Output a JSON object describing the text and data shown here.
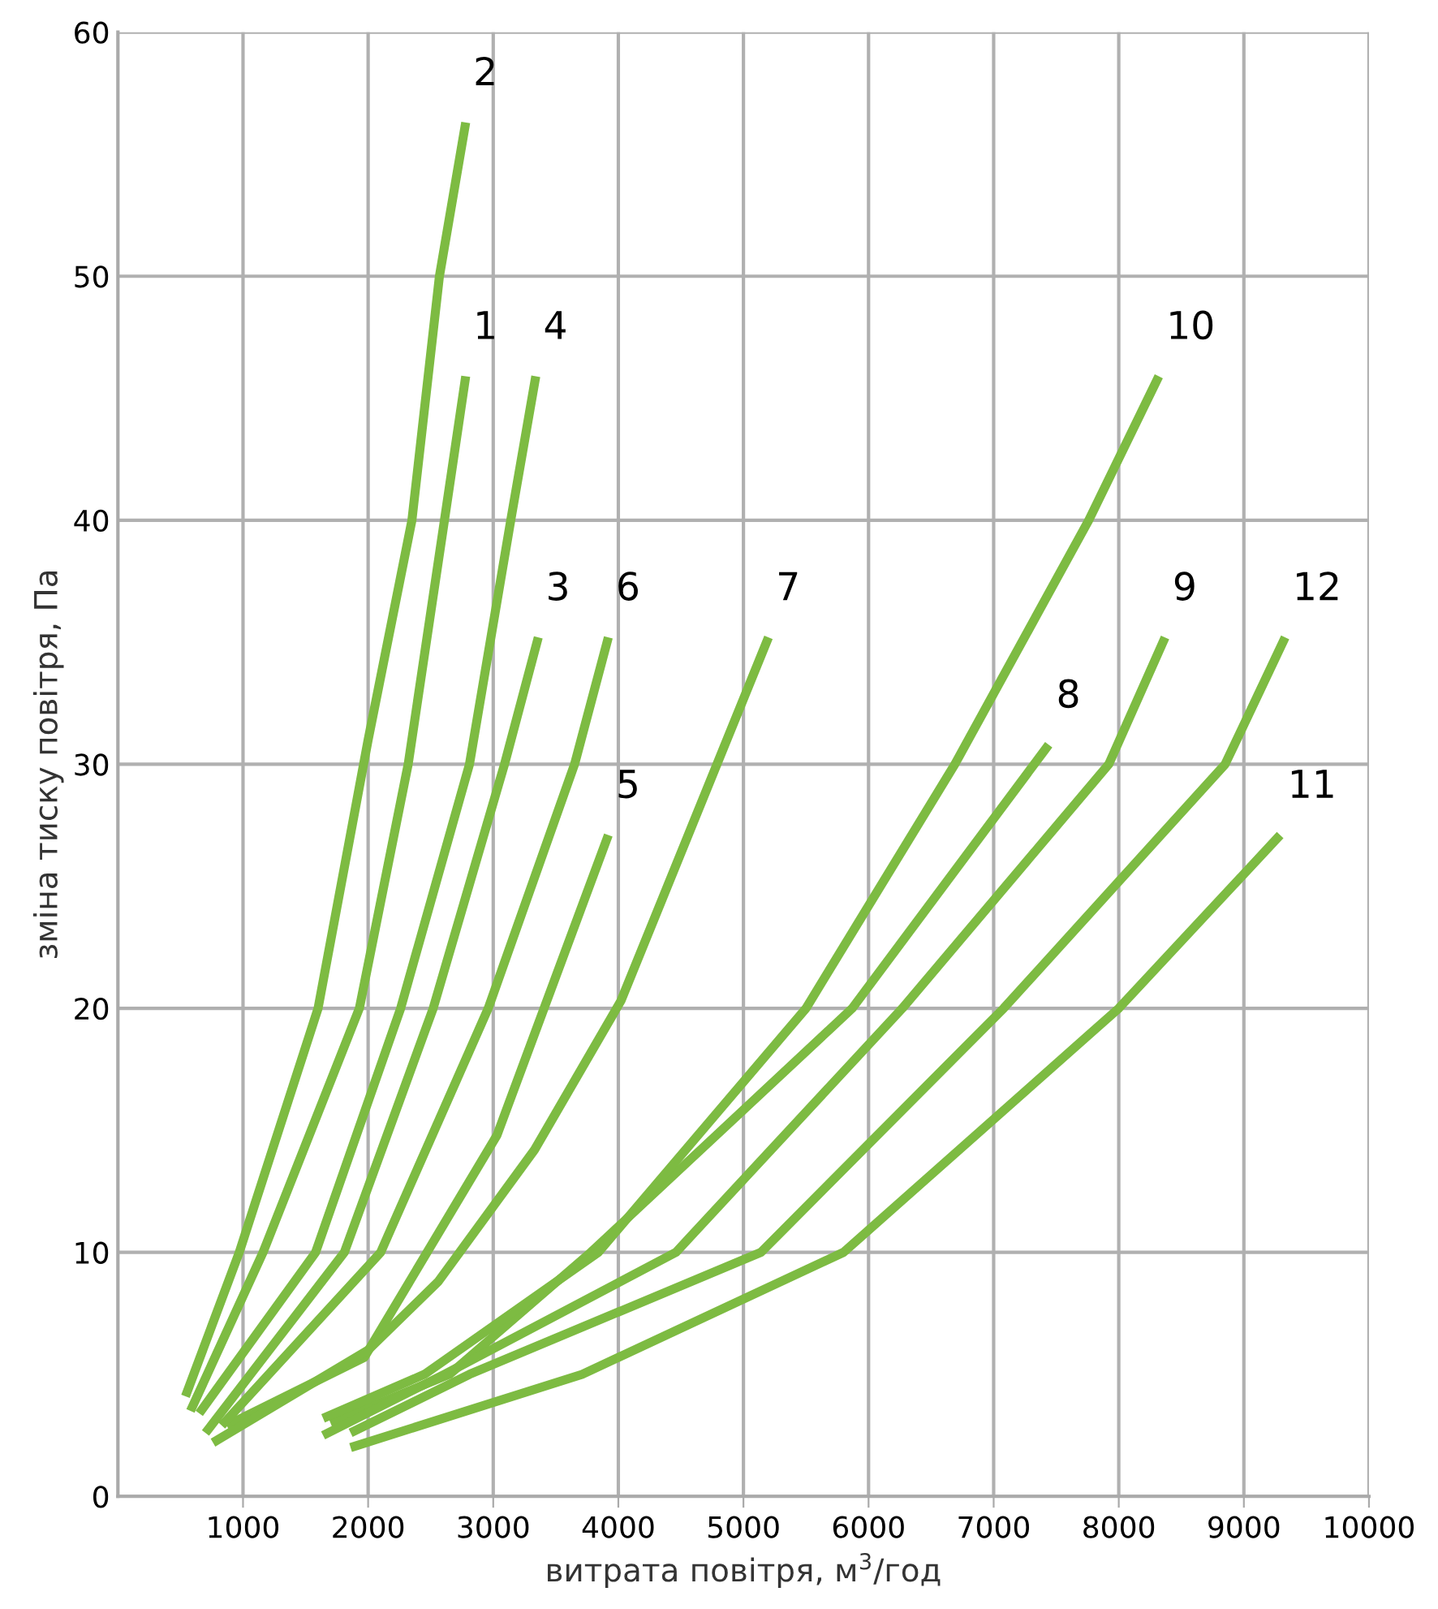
{
  "chart_data": {
    "type": "line",
    "xlabel": "витрата повітря, м$^{3}$/год",
    "ylabel": "зміна тиску повітря, Па",
    "xlim": [
      0,
      10000
    ],
    "ylim": [
      0,
      60
    ],
    "xticks": [
      1000,
      2000,
      3000,
      4000,
      5000,
      6000,
      7000,
      8000,
      9000,
      10000
    ],
    "yticks": [
      0,
      10,
      20,
      30,
      40,
      50,
      60
    ],
    "grid": true,
    "legend": false,
    "marker": "none",
    "line_style": "solid",
    "series": [
      {
        "name": "1",
        "color": "#7dbb42",
        "x": [
          580,
          1160,
          1930,
          2320,
          2610,
          2780
        ],
        "values": [
          3.5,
          10,
          20,
          30,
          40,
          45.9
        ]
      },
      {
        "name": "2",
        "color": "#7dbb42",
        "x": [
          540,
          970,
          1600,
          2000,
          2350,
          2570,
          2780
        ],
        "values": [
          4.1,
          10,
          20,
          31,
          40,
          50,
          56.3
        ]
      },
      {
        "name": "3",
        "color": "#7dbb42",
        "x": [
          700,
          1810,
          2520,
          3090,
          3360
        ],
        "values": [
          2.6,
          10,
          20,
          30,
          35.2
        ]
      },
      {
        "name": "4",
        "color": "#7dbb42",
        "x": [
          650,
          1580,
          2260,
          2810,
          3140,
          3340
        ],
        "values": [
          3.4,
          10,
          20,
          30,
          40,
          45.9
        ]
      },
      {
        "name": "5",
        "color": "#7dbb42",
        "x": [
          870,
          1970,
          3030,
          3920
        ],
        "values": [
          2.9,
          5.7,
          14.8,
          27.1
        ]
      },
      {
        "name": "6",
        "color": "#7dbb42",
        "x": [
          830,
          2100,
          2960,
          3650,
          3920
        ],
        "values": [
          2.9,
          10,
          20,
          30,
          35.2
        ]
      },
      {
        "name": "7",
        "color": "#7dbb42",
        "x": [
          760,
          2000,
          2560,
          3330,
          4020,
          5200
        ],
        "values": [
          2.2,
          6.0,
          8.8,
          14.2,
          20.3,
          35.2
        ]
      },
      {
        "name": "8",
        "color": "#7dbb42",
        "x": [
          1700,
          2650,
          3780,
          5870,
          7440
        ],
        "values": [
          3.0,
          5,
          10,
          20,
          30.8
        ]
      },
      {
        "name": "9",
        "color": "#7dbb42",
        "x": [
          1640,
          2610,
          4460,
          6270,
          7920,
          8370
        ],
        "values": [
          2.5,
          5,
          10,
          20,
          30,
          35.2
        ]
      },
      {
        "name": "10",
        "color": "#7dbb42",
        "x": [
          1640,
          2450,
          3840,
          5500,
          6690,
          7760,
          8320
        ],
        "values": [
          3.2,
          5,
          10,
          20,
          30,
          40,
          45.9
        ]
      },
      {
        "name": "11",
        "color": "#7dbb42",
        "x": [
          1860,
          3710,
          5800,
          8000,
          9290
        ],
        "values": [
          2.0,
          5,
          10,
          20,
          27.1
        ]
      },
      {
        "name": "12",
        "color": "#7dbb42",
        "x": [
          1860,
          2810,
          5140,
          7080,
          8850,
          9330
        ],
        "values": [
          2.6,
          5,
          10,
          20,
          30,
          35.2
        ]
      }
    ]
  }
}
